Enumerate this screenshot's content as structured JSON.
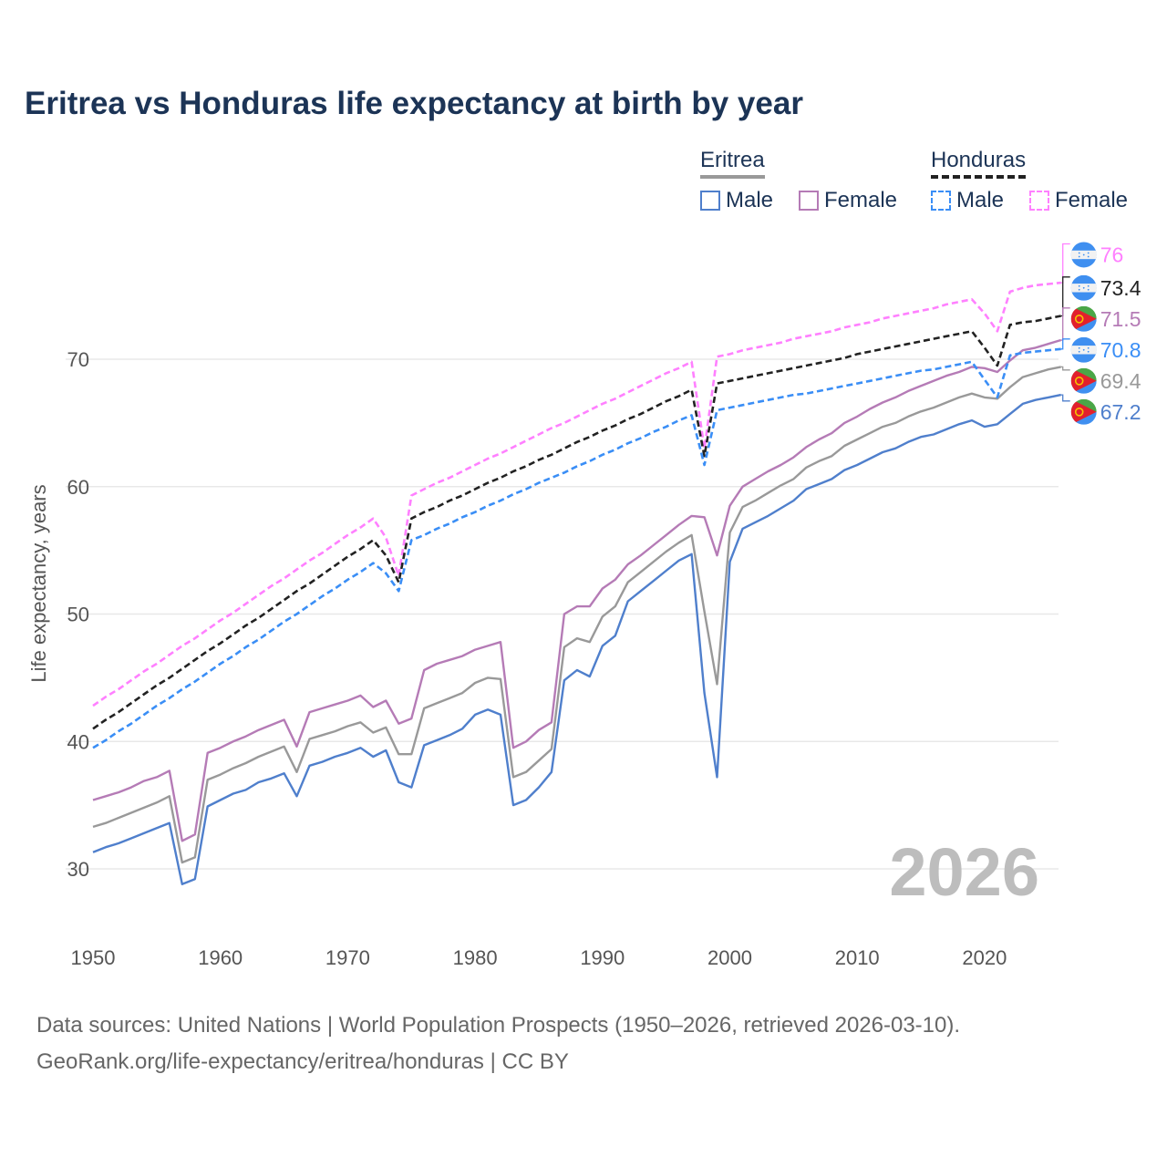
{
  "chart_data": {
    "type": "line",
    "title": "Eritrea vs Honduras life expectancy at birth by year",
    "xlabel": "",
    "ylabel": "Life expectancy, years",
    "xlim": [
      1950,
      2026
    ],
    "ylim": [
      25,
      79
    ],
    "xticks": [
      1950,
      1960,
      1970,
      1980,
      1990,
      2000,
      2010,
      2020
    ],
    "yticks": [
      30,
      40,
      50,
      60,
      70
    ],
    "grid": true,
    "year_watermark": "2026",
    "legend": {
      "placement": "top-right",
      "groups": [
        {
          "country": "Eritrea",
          "items": [
            "Male",
            "Female"
          ]
        },
        {
          "country": "Honduras",
          "items": [
            "Male",
            "Female"
          ]
        }
      ]
    },
    "x_start": 1950,
    "series": [
      {
        "name": "Eritrea Female",
        "country": "Eritrea",
        "color": "#b57bb6",
        "dashed": false,
        "flag": "eritrea",
        "end_label": "71.5",
        "values": [
          35.4,
          35.7,
          36.0,
          36.4,
          36.9,
          37.2,
          37.7,
          32.2,
          32.7,
          39.1,
          39.5,
          40.0,
          40.4,
          40.9,
          41.3,
          41.7,
          39.6,
          42.3,
          42.6,
          42.9,
          43.2,
          43.6,
          42.7,
          43.2,
          41.4,
          41.8,
          45.6,
          46.1,
          46.4,
          46.7,
          47.2,
          47.5,
          47.8,
          39.5,
          40.0,
          40.9,
          41.5,
          50.0,
          50.6,
          50.6,
          52.0,
          52.7,
          53.9,
          54.6,
          55.4,
          56.2,
          57.0,
          57.7,
          57.6,
          54.6,
          58.5,
          60.0,
          60.6,
          61.2,
          61.7,
          62.3,
          63.1,
          63.7,
          64.2,
          65.0,
          65.5,
          66.1,
          66.6,
          67.0,
          67.5,
          67.9,
          68.3,
          68.7,
          69.0,
          69.4,
          69.3,
          69.0,
          69.9,
          70.7,
          70.9,
          71.2,
          71.5
        ]
      },
      {
        "name": "Eritrea Total",
        "country": "Eritrea",
        "color": "#999999",
        "dashed": false,
        "flag": "eritrea",
        "end_label": "69.4",
        "values": [
          33.3,
          33.6,
          34.0,
          34.4,
          34.8,
          35.2,
          35.7,
          30.5,
          30.9,
          37.0,
          37.4,
          37.9,
          38.3,
          38.8,
          39.2,
          39.6,
          37.6,
          40.2,
          40.5,
          40.8,
          41.2,
          41.5,
          40.7,
          41.1,
          39.0,
          39.0,
          42.6,
          43.0,
          43.4,
          43.8,
          44.6,
          45.0,
          44.9,
          37.2,
          37.6,
          38.5,
          39.4,
          47.4,
          48.1,
          47.8,
          49.8,
          50.6,
          52.5,
          53.3,
          54.1,
          54.9,
          55.6,
          56.2,
          50.2,
          44.5,
          56.4,
          58.4,
          58.9,
          59.5,
          60.1,
          60.6,
          61.5,
          62.0,
          62.4,
          63.2,
          63.7,
          64.2,
          64.7,
          65.0,
          65.5,
          65.9,
          66.2,
          66.6,
          67.0,
          67.3,
          67.0,
          66.9,
          67.8,
          68.6,
          68.9,
          69.2,
          69.4
        ]
      },
      {
        "name": "Eritrea Male",
        "country": "Eritrea",
        "color": "#4f7fcc",
        "dashed": false,
        "flag": "eritrea",
        "end_label": "67.2",
        "values": [
          31.3,
          31.7,
          32.0,
          32.4,
          32.8,
          33.2,
          33.6,
          28.8,
          29.2,
          34.9,
          35.4,
          35.9,
          36.2,
          36.8,
          37.1,
          37.5,
          35.7,
          38.1,
          38.4,
          38.8,
          39.1,
          39.5,
          38.8,
          39.3,
          36.8,
          36.4,
          39.7,
          40.1,
          40.5,
          41.0,
          42.1,
          42.5,
          42.1,
          35.0,
          35.4,
          36.4,
          37.6,
          44.8,
          45.6,
          45.1,
          47.5,
          48.3,
          51.0,
          51.8,
          52.6,
          53.4,
          54.2,
          54.7,
          43.8,
          37.2,
          54.1,
          56.7,
          57.2,
          57.7,
          58.3,
          58.9,
          59.8,
          60.2,
          60.6,
          61.3,
          61.7,
          62.2,
          62.7,
          63.0,
          63.5,
          63.9,
          64.1,
          64.5,
          64.9,
          65.2,
          64.7,
          64.9,
          65.7,
          66.5,
          66.8,
          67.0,
          67.2
        ]
      },
      {
        "name": "Honduras Female",
        "country": "Honduras",
        "color": "#ff80ff",
        "dashed": true,
        "flag": "honduras",
        "end_label": "76",
        "values": [
          42.8,
          43.5,
          44.1,
          44.8,
          45.5,
          46.1,
          46.8,
          47.5,
          48.1,
          48.8,
          49.5,
          50.1,
          50.8,
          51.5,
          52.2,
          52.8,
          53.5,
          54.2,
          54.8,
          55.5,
          56.2,
          56.8,
          57.5,
          56.0,
          53.0,
          59.3,
          59.8,
          60.3,
          60.7,
          61.2,
          61.7,
          62.2,
          62.6,
          63.1,
          63.6,
          64.1,
          64.6,
          65.0,
          65.5,
          66.0,
          66.5,
          66.9,
          67.4,
          67.9,
          68.4,
          68.9,
          69.3,
          69.8,
          63.0,
          70.2,
          70.4,
          70.7,
          70.9,
          71.1,
          71.3,
          71.6,
          71.8,
          72.0,
          72.2,
          72.5,
          72.7,
          72.9,
          73.2,
          73.4,
          73.6,
          73.8,
          74.0,
          74.3,
          74.5,
          74.7,
          73.6,
          72.2,
          75.3,
          75.6,
          75.8,
          75.9,
          76.0
        ]
      },
      {
        "name": "Honduras Total",
        "country": "Honduras",
        "color": "#222222",
        "dashed": true,
        "flag": "honduras",
        "end_label": "73.4",
        "values": [
          41.0,
          41.7,
          42.3,
          43.0,
          43.7,
          44.4,
          45.0,
          45.7,
          46.4,
          47.1,
          47.7,
          48.4,
          49.1,
          49.7,
          50.4,
          51.1,
          51.8,
          52.4,
          53.1,
          53.8,
          54.5,
          55.1,
          55.8,
          54.6,
          52.5,
          57.5,
          58.0,
          58.4,
          58.9,
          59.3,
          59.8,
          60.3,
          60.7,
          61.2,
          61.6,
          62.1,
          62.5,
          63.0,
          63.5,
          63.9,
          64.4,
          64.8,
          65.3,
          65.7,
          66.2,
          66.7,
          67.1,
          67.6,
          62.4,
          68.1,
          68.3,
          68.5,
          68.7,
          68.9,
          69.1,
          69.3,
          69.5,
          69.7,
          69.9,
          70.1,
          70.4,
          70.6,
          70.8,
          71.0,
          71.2,
          71.4,
          71.6,
          71.8,
          72.0,
          72.2,
          70.9,
          69.5,
          72.7,
          72.9,
          73.0,
          73.2,
          73.4
        ]
      },
      {
        "name": "Honduras Male",
        "country": "Honduras",
        "color": "#3a8ef6",
        "dashed": true,
        "flag": "honduras",
        "end_label": "70.8",
        "values": [
          39.5,
          40.1,
          40.8,
          41.4,
          42.1,
          42.8,
          43.4,
          44.1,
          44.7,
          45.4,
          46.1,
          46.7,
          47.4,
          48.0,
          48.7,
          49.4,
          50.0,
          50.7,
          51.4,
          52.0,
          52.7,
          53.3,
          54.0,
          53.2,
          51.8,
          55.8,
          56.2,
          56.7,
          57.1,
          57.6,
          58.0,
          58.5,
          58.9,
          59.4,
          59.8,
          60.3,
          60.7,
          61.1,
          61.6,
          62.0,
          62.5,
          62.9,
          63.4,
          63.8,
          64.3,
          64.7,
          65.2,
          65.6,
          61.7,
          66.0,
          66.2,
          66.4,
          66.6,
          66.8,
          67.0,
          67.2,
          67.3,
          67.5,
          67.7,
          67.9,
          68.1,
          68.3,
          68.5,
          68.7,
          68.9,
          69.1,
          69.2,
          69.4,
          69.6,
          69.8,
          68.4,
          67.0,
          70.3,
          70.5,
          70.6,
          70.7,
          70.8
        ]
      }
    ]
  },
  "legend": {
    "eritrea": "Eritrea",
    "honduras": "Honduras",
    "male": "Male",
    "female": "Female"
  },
  "footer": {
    "line1": "Data sources: United Nations | World Population Prospects (1950–2026, retrieved 2026-03-10).",
    "line2": "GeoRank.org/life-expectancy/eritrea/honduras | CC BY"
  }
}
